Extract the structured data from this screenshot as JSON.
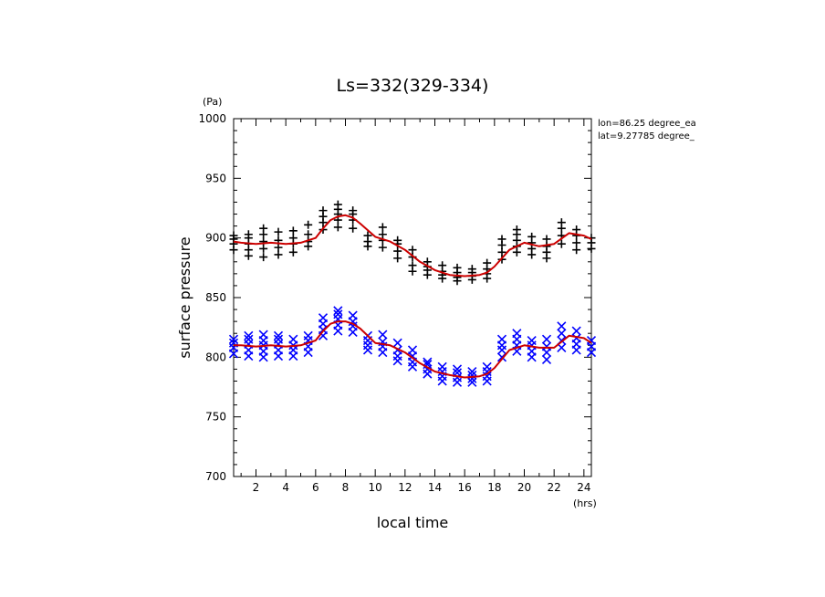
{
  "chart_data": {
    "type": "scatter",
    "title": "Ls=332(329-334)",
    "xlabel": "local time",
    "ylabel": "surface pressure",
    "x_unit": "(hrs)",
    "y_unit": "(Pa)",
    "xlim": [
      0.5,
      24.5
    ],
    "ylim": [
      700,
      1000
    ],
    "x_ticks": [
      2,
      4,
      6,
      8,
      10,
      12,
      14,
      16,
      18,
      20,
      22,
      24
    ],
    "y_ticks": [
      700,
      750,
      800,
      850,
      900,
      950,
      1000
    ],
    "annotations": [
      "lon=86.25 degree_ea",
      "lat=9.27785 degree_"
    ],
    "colors": {
      "upper_markers": "#000000",
      "lower_markers": "#0000ff",
      "fit_line": "#cc0000"
    },
    "grid": false,
    "series": [
      {
        "marker": "plus",
        "color": "#000000",
        "points": [
          {
            "x": 0.5,
            "y": [
              890,
              895,
              899,
              902
            ]
          },
          {
            "x": 1.5,
            "y": [
              885,
              890,
              895,
              900,
              903
            ]
          },
          {
            "x": 2.5,
            "y": [
              884,
              891,
              897,
              903,
              908
            ]
          },
          {
            "x": 3.5,
            "y": [
              886,
              892,
              898,
              905
            ]
          },
          {
            "x": 4.5,
            "y": [
              888,
              895,
              900,
              906
            ]
          },
          {
            "x": 5.5,
            "y": [
              893,
              897,
              903,
              911
            ]
          },
          {
            "x": 6.5,
            "y": [
              907,
              913,
              918,
              923
            ]
          },
          {
            "x": 7.5,
            "y": [
              909,
              915,
              920,
              924,
              928
            ]
          },
          {
            "x": 8.5,
            "y": [
              908,
              915,
              920,
              923
            ]
          },
          {
            "x": 9.5,
            "y": [
              893,
              897,
              902
            ]
          },
          {
            "x": 10.5,
            "y": [
              892,
              898,
              903,
              909
            ]
          },
          {
            "x": 11.5,
            "y": [
              883,
              889,
              895,
              898
            ]
          },
          {
            "x": 12.5,
            "y": [
              872,
              877,
              884,
              890
            ]
          },
          {
            "x": 13.5,
            "y": [
              869,
              873,
              876,
              880
            ]
          },
          {
            "x": 14.5,
            "y": [
              866,
              869,
              872,
              877
            ]
          },
          {
            "x": 15.5,
            "y": [
              864,
              867,
              871,
              875
            ]
          },
          {
            "x": 16.5,
            "y": [
              865,
              868,
              871,
              874
            ]
          },
          {
            "x": 17.5,
            "y": [
              866,
              870,
              874,
              879
            ]
          },
          {
            "x": 18.5,
            "y": [
              882,
              888,
              894,
              899
            ]
          },
          {
            "x": 19.5,
            "y": [
              888,
              893,
              898,
              903,
              907
            ]
          },
          {
            "x": 20.5,
            "y": [
              886,
              891,
              896,
              901
            ]
          },
          {
            "x": 21.5,
            "y": [
              883,
              888,
              893,
              899
            ]
          },
          {
            "x": 22.5,
            "y": [
              895,
              902,
              908,
              913
            ]
          },
          {
            "x": 23.5,
            "y": [
              890,
              896,
              902,
              907
            ]
          },
          {
            "x": 24.5,
            "y": [
              891,
              896,
              900
            ]
          }
        ]
      },
      {
        "marker": "cross",
        "color": "#0000ff",
        "points": [
          {
            "x": 0.5,
            "y": [
              803,
              808,
              812,
              815
            ]
          },
          {
            "x": 1.5,
            "y": [
              801,
              806,
              811,
              815,
              818
            ]
          },
          {
            "x": 2.5,
            "y": [
              800,
              805,
              810,
              814,
              819
            ]
          },
          {
            "x": 3.5,
            "y": [
              801,
              806,
              811,
              815,
              818
            ]
          },
          {
            "x": 4.5,
            "y": [
              801,
              806,
              810,
              815
            ]
          },
          {
            "x": 5.5,
            "y": [
              804,
              809,
              814,
              818
            ]
          },
          {
            "x": 6.5,
            "y": [
              818,
              823,
              828,
              833
            ]
          },
          {
            "x": 7.5,
            "y": [
              822,
              827,
              832,
              836,
              839
            ]
          },
          {
            "x": 8.5,
            "y": [
              821,
              826,
              830,
              835
            ]
          },
          {
            "x": 9.5,
            "y": [
              806,
              810,
              814,
              818
            ]
          },
          {
            "x": 10.5,
            "y": [
              804,
              809,
              813,
              819
            ]
          },
          {
            "x": 11.5,
            "y": [
              797,
              801,
              806,
              812
            ]
          },
          {
            "x": 12.5,
            "y": [
              792,
              796,
              801,
              806
            ]
          },
          {
            "x": 13.5,
            "y": [
              786,
              790,
              794,
              796
            ]
          },
          {
            "x": 14.5,
            "y": [
              780,
              784,
              788,
              792
            ]
          },
          {
            "x": 15.5,
            "y": [
              779,
              783,
              787,
              790
            ]
          },
          {
            "x": 16.5,
            "y": [
              779,
              782,
              785,
              788
            ]
          },
          {
            "x": 17.5,
            "y": [
              780,
              784,
              788,
              792
            ]
          },
          {
            "x": 18.5,
            "y": [
              800,
              806,
              810,
              815
            ]
          },
          {
            "x": 19.5,
            "y": [
              805,
              810,
              815,
              820
            ]
          },
          {
            "x": 20.5,
            "y": [
              800,
              805,
              810,
              814
            ]
          },
          {
            "x": 21.5,
            "y": [
              798,
              804,
              809,
              815
            ]
          },
          {
            "x": 22.5,
            "y": [
              808,
              814,
              820,
              826
            ]
          },
          {
            "x": 23.5,
            "y": [
              806,
              811,
              816,
              822
            ]
          },
          {
            "x": 24.5,
            "y": [
              804,
              809,
              814
            ]
          }
        ]
      }
    ],
    "fit_lines": [
      {
        "color": "#cc0000",
        "x": [
          0.5,
          1,
          2,
          3,
          4,
          5,
          6,
          6.5,
          7,
          7.5,
          8,
          8.5,
          9,
          10,
          11,
          12,
          13,
          14,
          15,
          16,
          17,
          17.5,
          18,
          19,
          20,
          21,
          22,
          23,
          24,
          24.5
        ],
        "y": [
          897,
          896,
          895,
          896,
          895,
          896,
          900,
          908,
          915,
          918,
          919,
          917,
          912,
          901,
          897,
          890,
          880,
          873,
          869,
          868,
          869,
          871,
          876,
          890,
          896,
          893,
          895,
          904,
          902,
          899
        ]
      },
      {
        "color": "#cc0000",
        "x": [
          0.5,
          1,
          2,
          3,
          4,
          5,
          6,
          6.5,
          7,
          7.5,
          8,
          8.5,
          9,
          10,
          11,
          12,
          13,
          14,
          15,
          16,
          17,
          17.5,
          18,
          19,
          20,
          21,
          22,
          23,
          24,
          24.5
        ],
        "y": [
          810,
          810,
          809,
          810,
          809,
          810,
          814,
          822,
          828,
          830,
          830,
          828,
          824,
          812,
          810,
          804,
          795,
          788,
          785,
          783,
          784,
          786,
          791,
          806,
          810,
          808,
          808,
          818,
          816,
          812
        ]
      }
    ]
  }
}
